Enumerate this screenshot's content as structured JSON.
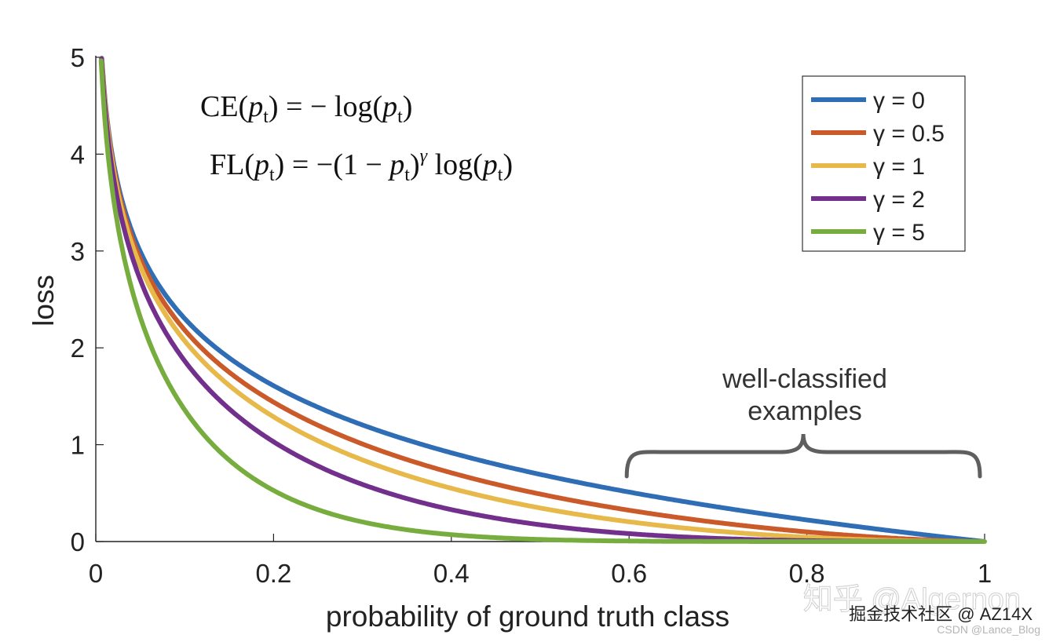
{
  "chart_data": {
    "type": "line",
    "title": "",
    "xlabel": "probability of ground truth class",
    "ylabel": "loss",
    "xlim": [
      0,
      1
    ],
    "ylim": [
      0,
      5
    ],
    "xticks": [
      "0",
      "0.2",
      "0.4",
      "0.6",
      "0.8",
      "1"
    ],
    "yticks": [
      "0",
      "1",
      "2",
      "3",
      "4",
      "5"
    ],
    "grid": false,
    "legend_position": "top-right",
    "formula": {
      "ce_parts": [
        "CE(",
        "p",
        "t",
        ") = − log(",
        "p",
        "t",
        ")"
      ],
      "fl_parts": [
        "FL(",
        "p",
        "t",
        ") = −(1 − ",
        "p",
        "t",
        ")",
        "γ",
        " log(",
        "p",
        "t",
        ")"
      ]
    },
    "annotation": {
      "line1": "well-classified",
      "line2": "examples",
      "x_range": [
        0.6,
        1.0
      ]
    },
    "series": [
      {
        "name": "γ = 0",
        "gamma": 0,
        "color": "#2f6db5"
      },
      {
        "name": "γ = 0.5",
        "gamma": 0.5,
        "color": "#cb5a2a"
      },
      {
        "name": "γ = 1",
        "gamma": 1,
        "color": "#e7b84a"
      },
      {
        "name": "γ = 2",
        "gamma": 2,
        "color": "#72308c"
      },
      {
        "name": "γ = 5",
        "gamma": 5,
        "color": "#77ad3e"
      }
    ]
  },
  "watermarks": {
    "line1": "知乎 @Algernon",
    "line2": "掘金技术社区 @ AZ14X",
    "line3": "CSDN @Lance_Blog"
  }
}
